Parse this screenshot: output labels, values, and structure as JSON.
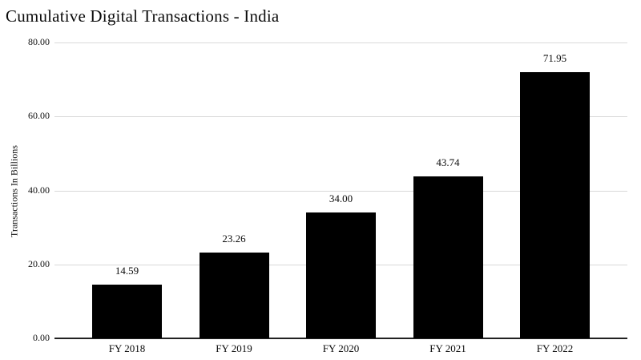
{
  "chart_data": {
    "type": "bar",
    "title": "Cumulative Digital Transactions - India",
    "categories": [
      "FY 2018",
      "FY 2019",
      "FY 2020",
      "FY 2021",
      "FY 2022"
    ],
    "values": [
      14.59,
      23.26,
      34.0,
      43.74,
      71.95
    ],
    "value_labels": [
      "14.59",
      "23.26",
      "34.00",
      "43.74",
      "71.95"
    ],
    "xlabel": "",
    "ylabel": "Transactions In Billions",
    "ylim": [
      0,
      80
    ],
    "yticks": [
      0,
      20,
      40,
      60,
      80
    ],
    "ytick_labels": [
      "0.00",
      "20.00",
      "40.00",
      "60.00",
      "80.00"
    ],
    "grid": "horizontal",
    "legend": "none",
    "colors": {
      "bar": "#000000",
      "gridline": "#d9d9d9",
      "axis_line": "#222222",
      "text": "#0b0b0b",
      "background": "#ffffff"
    }
  }
}
